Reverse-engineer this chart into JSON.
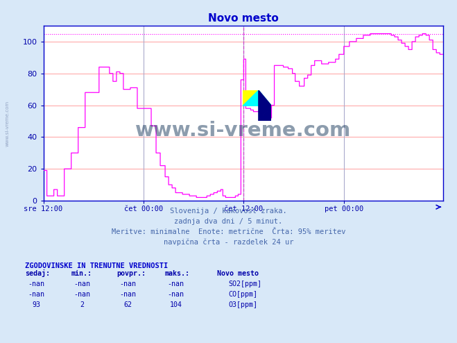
{
  "title": "Novo mesto",
  "bg_color": "#d8e8f8",
  "plot_bg_color": "#ffffff",
  "line_color_o3": "#ff00ff",
  "line_color_so2": "#006060",
  "line_color_co": "#00c0c0",
  "grid_color_h": "#ffaaaa",
  "grid_color_v": "#aaaacc",
  "axis_color": "#0000cc",
  "text_color": "#0000aa",
  "title_color": "#0000cc",
  "ylabel_range": [
    0,
    110
  ],
  "yticks": [
    0,
    20,
    40,
    60,
    80,
    100
  ],
  "xtick_labels": [
    "sre 12:00",
    "čet 00:00",
    "čet 12:00",
    "pet 00:00"
  ],
  "subtitle_lines": [
    "Slovenija / kakovost zraka.",
    "zadnja dva dni / 5 minut.",
    "Meritve: minimalne  Enote: metrične  Črta: 95% meritev",
    "navpična črta - razdelek 24 ur"
  ],
  "table_header": "ZGODOVINSKE IN TRENUTNE VREDNOSTI",
  "table_cols": [
    "sedaj:",
    "min.:",
    "povpr.:",
    "maks.:"
  ],
  "legend_station": "Novo mesto",
  "legend_items": [
    {
      "label": "SO2[ppm]",
      "color": "#006060"
    },
    {
      "label": "CO[ppm]",
      "color": "#00c0c0"
    },
    {
      "label": "O3[ppm]",
      "color": "#ff00ff"
    }
  ],
  "table_rows": [
    [
      "-nan",
      "-nan",
      "-nan",
      "-nan"
    ],
    [
      "-nan",
      "-nan",
      "-nan",
      "-nan"
    ],
    [
      "93",
      "2",
      "62",
      "104"
    ]
  ],
  "watermark_text": "www.si-vreme.com",
  "watermark_color": "#1a3a5c",
  "sidewatermark_text": "www.si-vreme.com",
  "n_points": 576,
  "dashed_vline_x": 288,
  "dotted_hline_y": 105
}
